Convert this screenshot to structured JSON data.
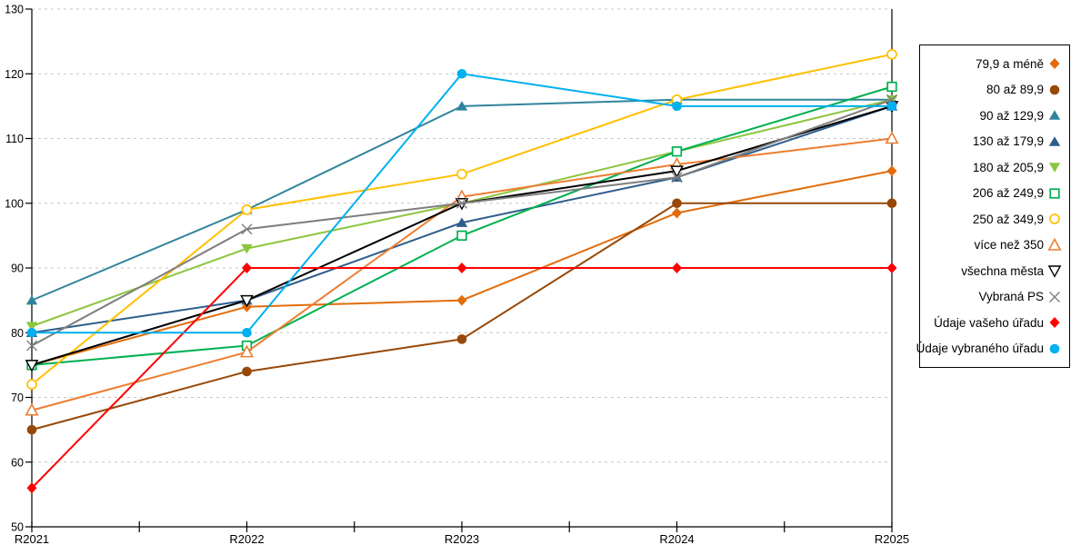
{
  "chart_data": {
    "type": "line",
    "title": "",
    "xlabel": "",
    "ylabel": "",
    "x": [
      "R2021",
      "R2022",
      "R2023",
      "R2024",
      "R2025"
    ],
    "y_ticks": [
      50,
      60,
      70,
      80,
      90,
      100,
      110,
      120,
      130
    ],
    "ylim": [
      50,
      130
    ],
    "grid": "horizontal-dashed",
    "legend_position": "right-outside",
    "series": [
      {
        "name": "79,9 a méně",
        "marker": "diamond",
        "color": "#E36C09",
        "values": [
          75,
          84,
          85,
          98.5,
          105
        ]
      },
      {
        "name": "80 až 89,9",
        "marker": "circle",
        "color": "#974807",
        "values": [
          65,
          74,
          79,
          100,
          100
        ]
      },
      {
        "name": "90 až 129,9",
        "marker": "triangle-up",
        "color": "#31849B",
        "values": [
          85,
          99,
          115,
          116,
          116
        ]
      },
      {
        "name": "130 až 179,9",
        "marker": "triangle-up",
        "color": "#2E5E8C",
        "values": [
          80,
          85,
          97,
          104,
          115
        ]
      },
      {
        "name": "180 až 205,9",
        "marker": "triangle-down",
        "color": "#8CC63F",
        "values": [
          81,
          93,
          100,
          108,
          116
        ]
      },
      {
        "name": "206 až 249,9",
        "marker": "square-open",
        "color": "#00B050",
        "values": [
          75,
          78,
          95,
          108,
          118
        ]
      },
      {
        "name": "250 až 349,9",
        "marker": "circle-open",
        "color": "#FFC000",
        "values": [
          72,
          99,
          104.5,
          116,
          123
        ]
      },
      {
        "name": "více než 350",
        "marker": "triangle-up-open",
        "color": "#ED7D31",
        "values": [
          68,
          77,
          101,
          106,
          110
        ]
      },
      {
        "name": "všechna města",
        "marker": "triangle-down-open",
        "color": "#000000",
        "values": [
          75,
          85,
          100,
          105,
          115
        ]
      },
      {
        "name": "Vybraná PS",
        "marker": "x",
        "color": "#7F7F7F",
        "values": [
          78,
          96,
          100,
          104,
          116
        ]
      },
      {
        "name": "Údaje vašeho úřadu",
        "marker": "diamond",
        "color": "#FF0000",
        "values": [
          56,
          90,
          90,
          90,
          90
        ]
      },
      {
        "name": "Údaje vybraného úřadu",
        "marker": "circle",
        "color": "#00B0F0",
        "values": [
          80,
          80,
          120,
          115,
          115
        ]
      }
    ]
  },
  "axis_style": {
    "grid_color": "#C6C6C6",
    "axis_color": "#000000",
    "background": "#FFFFFF"
  }
}
